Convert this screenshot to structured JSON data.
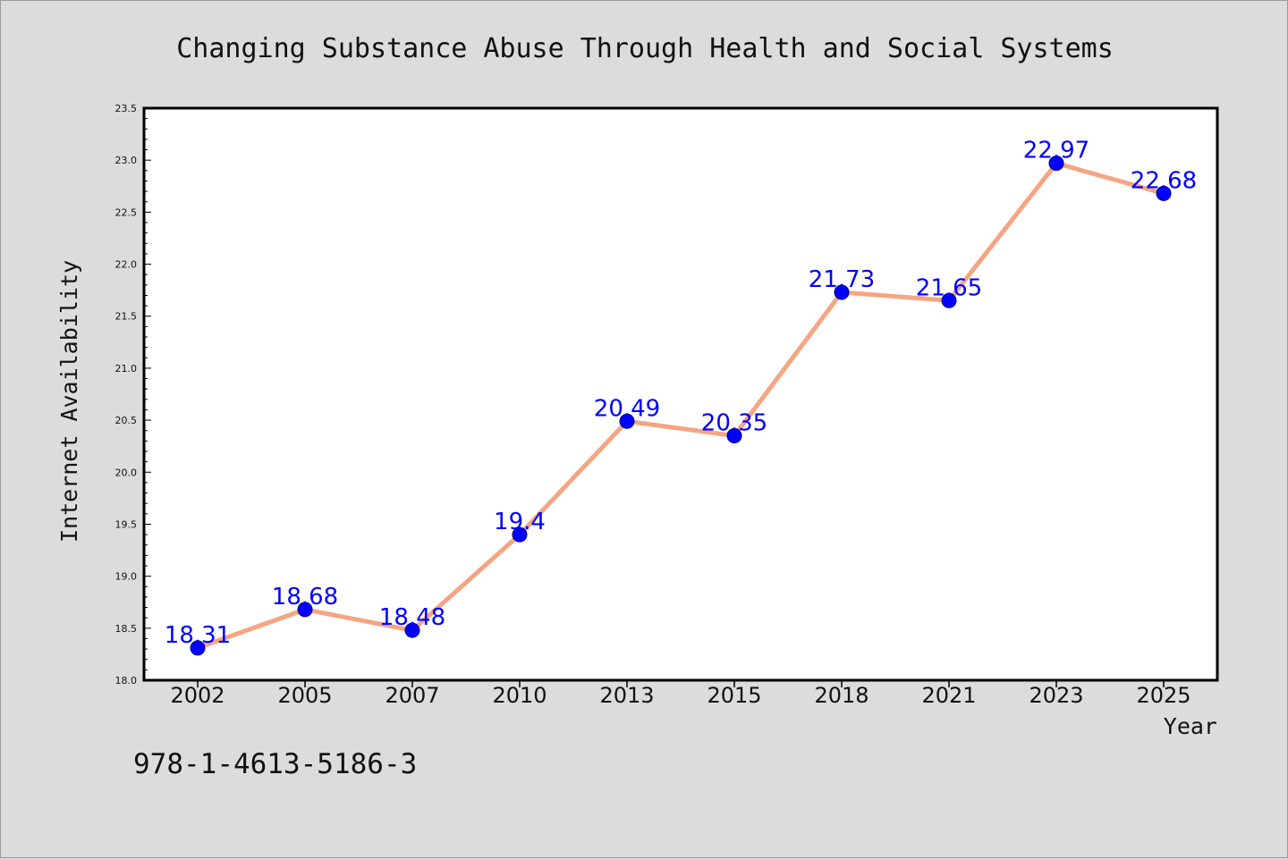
{
  "chart_data": {
    "type": "line",
    "title": "Changing Substance Abuse Through Health and Social Systems",
    "xlabel": "Year",
    "ylabel": "Internet Availability",
    "categories": [
      "2002",
      "2005",
      "2007",
      "2010",
      "2013",
      "2015",
      "2018",
      "2021",
      "2023",
      "2025"
    ],
    "values": [
      18.31,
      18.68,
      18.48,
      19.4,
      20.49,
      20.35,
      21.73,
      21.65,
      22.97,
      22.68
    ],
    "data_labels": [
      "18.31",
      "18.68",
      "18.48",
      "19.4",
      "20.49",
      "20.35",
      "21.73",
      "21.65",
      "22.97",
      "22.68"
    ],
    "ylim": [
      18.0,
      23.5
    ],
    "yticks": [
      "18.0",
      "18.5",
      "19.0",
      "19.5",
      "20.0",
      "20.5",
      "21.0",
      "21.5",
      "22.0",
      "22.5",
      "23.0",
      "23.5"
    ],
    "grid": false,
    "legend": "none",
    "colors": {
      "line": "#f4a582",
      "marker": "#0000ff",
      "label": "#0000ff",
      "plot_background": "#ffffff",
      "figure_background": "#dcdcdc"
    }
  },
  "footer": {
    "isbn": "978-1-4613-5186-3"
  }
}
